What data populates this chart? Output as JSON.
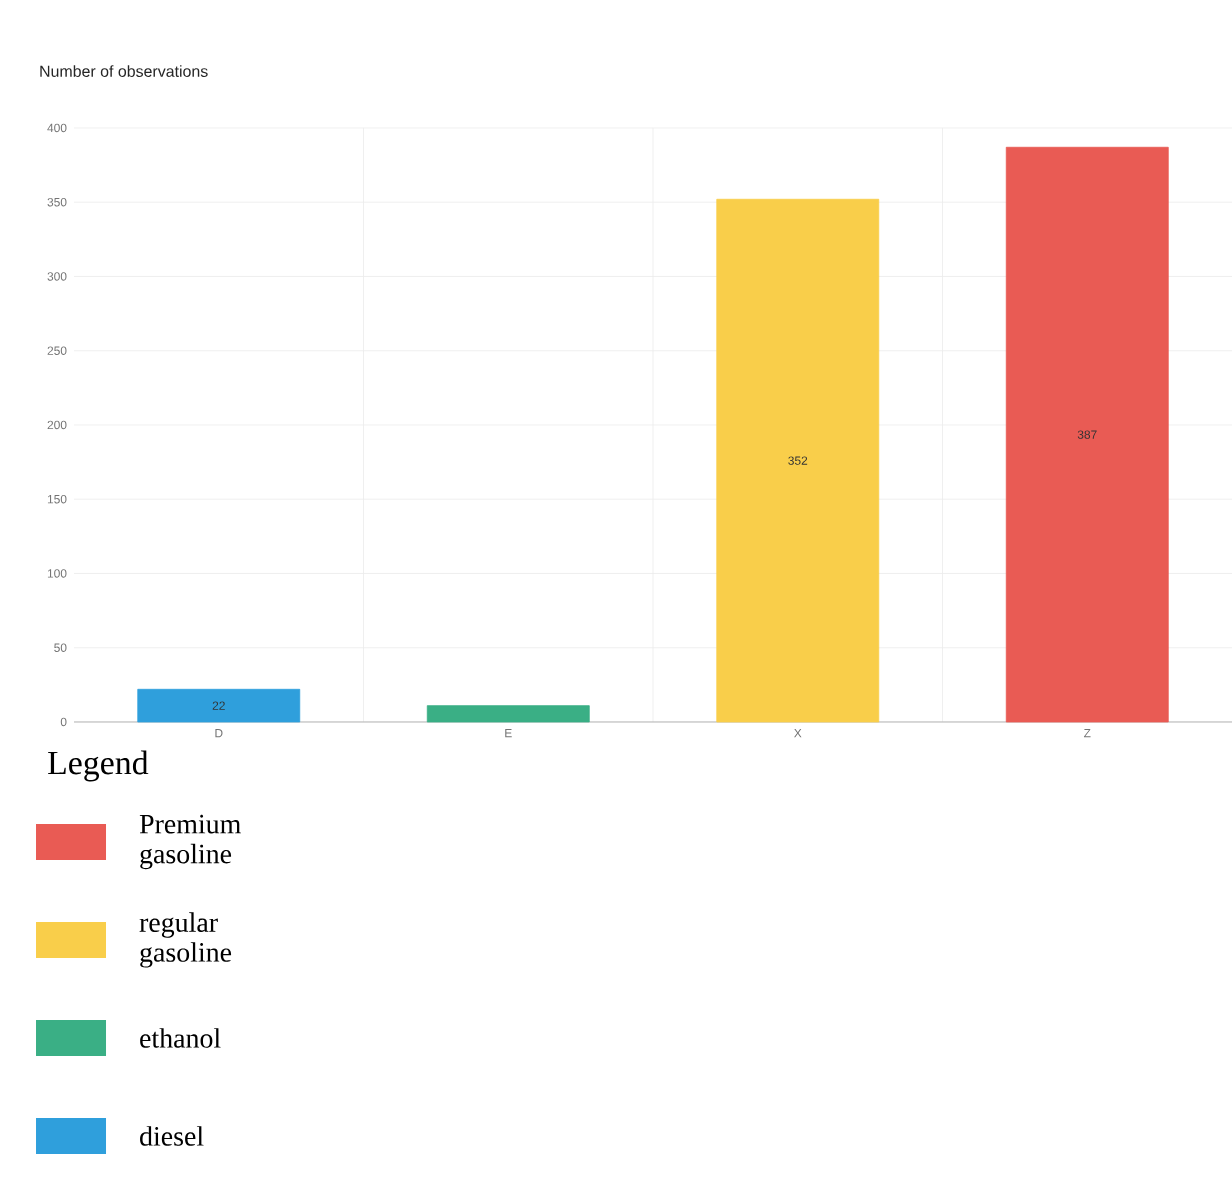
{
  "chart_data": {
    "type": "bar",
    "ylabel": "Number of observations",
    "legend_title": "Legend",
    "categories": [
      "D",
      "E",
      "X",
      "Z"
    ],
    "series": [
      {
        "name": "Premium gasoline",
        "color": "#e95b54",
        "values": [
          null,
          null,
          null,
          387
        ],
        "value_labels": [
          null,
          null,
          null,
          "387"
        ]
      },
      {
        "name": "regular gasoline",
        "color": "#f9ce4a",
        "values": [
          null,
          null,
          352,
          null
        ],
        "value_labels": [
          null,
          null,
          "352",
          null
        ]
      },
      {
        "name": "ethanol",
        "color": "#3aaf85",
        "values": [
          null,
          11,
          null,
          null
        ],
        "value_labels": [
          null,
          null,
          null,
          null
        ]
      },
      {
        "name": "diesel",
        "color": "#2f9fdc",
        "values": [
          22,
          null,
          null,
          null
        ],
        "value_labels": [
          "22",
          null,
          null,
          null
        ]
      }
    ],
    "ylim": [
      0,
      400
    ],
    "yticks": [
      0,
      50,
      100,
      150,
      200,
      250,
      300,
      350,
      400
    ],
    "grid": true,
    "legend": "bottom left"
  }
}
